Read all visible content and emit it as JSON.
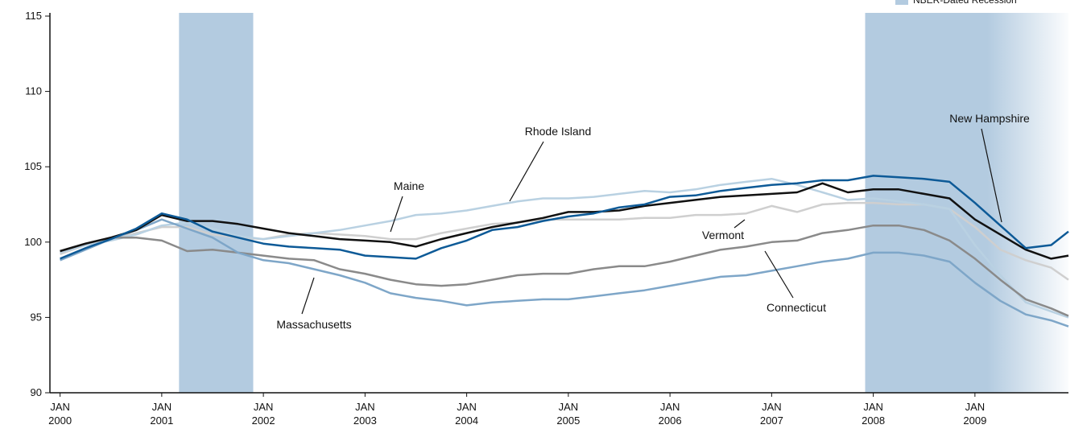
{
  "chart_data": {
    "type": "line",
    "x": [
      2000,
      2000.25,
      2000.5,
      2000.75,
      2001,
      2001.25,
      2001.5,
      2001.75,
      2002,
      2002.25,
      2002.5,
      2002.75,
      2003,
      2003.25,
      2003.5,
      2003.75,
      2004,
      2004.25,
      2004.5,
      2004.75,
      2005,
      2005.25,
      2005.5,
      2005.75,
      2006,
      2006.25,
      2006.5,
      2006.75,
      2007,
      2007.25,
      2007.5,
      2007.75,
      2008,
      2008.25,
      2008.5,
      2008.75,
      2009,
      2009.25,
      2009.5,
      2009.75,
      2009.92
    ],
    "series": [
      {
        "name": "Vermont",
        "color": "#cfcfcf",
        "values": [
          99.2,
          99.8,
          100.2,
          100.6,
          101.0,
          101.0,
          100.5,
          100.3,
          100.2,
          100.5,
          100.6,
          100.5,
          100.4,
          100.2,
          100.2,
          100.6,
          100.9,
          101.2,
          101.3,
          101.5,
          101.5,
          101.5,
          101.5,
          101.6,
          101.6,
          101.8,
          101.8,
          101.9,
          102.4,
          102.0,
          102.5,
          102.6,
          102.6,
          102.5,
          102.5,
          102.2,
          101.0,
          99.5,
          98.8,
          98.3,
          97.5
        ]
      },
      {
        "name": "Rhode Island",
        "color": "#b9d1e2",
        "values": [
          99.3,
          99.8,
          100.1,
          100.5,
          101.1,
          101.3,
          100.9,
          100.4,
          100.2,
          100.4,
          100.6,
          100.8,
          101.1,
          101.4,
          101.8,
          101.9,
          102.1,
          102.4,
          102.7,
          102.9,
          102.9,
          103.0,
          103.2,
          103.4,
          103.3,
          103.5,
          103.8,
          104.0,
          104.2,
          103.8,
          103.3,
          102.8,
          102.9,
          102.7,
          102.5,
          102.2,
          99.8,
          97.8,
          96.0,
          95.4,
          95.0
        ]
      },
      {
        "name": "Connecticut",
        "color": "#8a8a8a",
        "values": [
          99.4,
          99.9,
          100.3,
          100.3,
          100.1,
          99.4,
          99.5,
          99.3,
          99.1,
          98.9,
          98.8,
          98.2,
          97.9,
          97.5,
          97.2,
          97.1,
          97.2,
          97.5,
          97.8,
          97.9,
          97.9,
          98.2,
          98.4,
          98.4,
          98.7,
          99.1,
          99.5,
          99.7,
          100.0,
          100.1,
          100.6,
          100.8,
          101.1,
          101.1,
          100.8,
          100.1,
          98.9,
          97.5,
          96.2,
          95.6,
          95.1
        ]
      },
      {
        "name": "Massachusetts",
        "color": "#7ea6c8",
        "values": [
          98.8,
          99.5,
          100.2,
          100.8,
          101.5,
          100.9,
          100.3,
          99.3,
          98.8,
          98.6,
          98.2,
          97.8,
          97.3,
          96.6,
          96.3,
          96.1,
          95.8,
          96.0,
          96.1,
          96.2,
          96.2,
          96.4,
          96.6,
          96.8,
          97.1,
          97.4,
          97.7,
          97.8,
          98.1,
          98.4,
          98.7,
          98.9,
          99.3,
          99.3,
          99.1,
          98.7,
          97.3,
          96.1,
          95.2,
          94.8,
          94.4
        ]
      },
      {
        "name": "Maine",
        "color": "#111111",
        "values": [
          99.4,
          99.9,
          100.3,
          100.8,
          101.8,
          101.4,
          101.4,
          101.2,
          100.9,
          100.6,
          100.4,
          100.2,
          100.1,
          100.0,
          99.7,
          100.2,
          100.6,
          101.0,
          101.3,
          101.6,
          102.0,
          102.0,
          102.1,
          102.4,
          102.6,
          102.8,
          103.0,
          103.1,
          103.2,
          103.3,
          103.9,
          103.3,
          103.5,
          103.5,
          103.2,
          102.9,
          101.5,
          100.5,
          99.5,
          98.9,
          99.1
        ]
      },
      {
        "name": "New Hampshire",
        "color": "#0d5a97",
        "values": [
          98.9,
          99.6,
          100.2,
          100.9,
          101.9,
          101.5,
          100.7,
          100.3,
          99.9,
          99.7,
          99.6,
          99.5,
          99.1,
          99.0,
          98.9,
          99.6,
          100.1,
          100.8,
          101.0,
          101.4,
          101.7,
          101.9,
          102.3,
          102.5,
          103.0,
          103.1,
          103.4,
          103.6,
          103.8,
          103.9,
          104.1,
          104.1,
          104.4,
          104.3,
          104.2,
          104.0,
          102.6,
          101.1,
          99.6,
          99.8,
          100.7
        ]
      }
    ],
    "recessions": [
      [
        2001.17,
        2001.9
      ],
      [
        2007.92,
        2009.92
      ]
    ],
    "recession_color": "#b3cbe0",
    "legend": "NBER-Dated Recession",
    "xlim": [
      1999.9,
      2009.92
    ],
    "xticks": [
      {
        "value": 2000,
        "label": "JAN 2000"
      },
      {
        "value": 2001,
        "label": "JAN 2001"
      },
      {
        "value": 2002,
        "label": "JAN 2002"
      },
      {
        "value": 2003,
        "label": "JAN 2003"
      },
      {
        "value": 2004,
        "label": "JAN 2004"
      },
      {
        "value": 2005,
        "label": "JAN 2005"
      },
      {
        "value": 2006,
        "label": "JAN 2006"
      },
      {
        "value": 2007,
        "label": "JAN 2007"
      },
      {
        "value": 2008,
        "label": "JAN 2008"
      },
      {
        "value": 2009,
        "label": "JAN 2009"
      }
    ],
    "ylim": [
      90,
      115
    ],
    "yticks": [
      90,
      95,
      100,
      105,
      110,
      115
    ]
  }
}
